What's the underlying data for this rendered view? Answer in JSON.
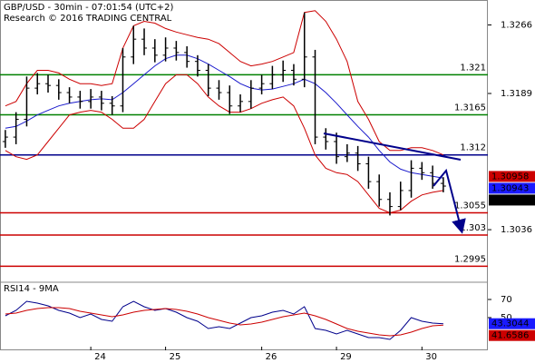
{
  "chart_data": [
    {
      "type": "ohlc",
      "title": "GBP/USD - 30min - 07:01:54 (UTC+2)",
      "subtitle": "Research © 2016 TRADING CENTRAL",
      "categories": [
        null,
        null,
        null,
        null,
        null,
        null,
        null,
        null,
        "24",
        null,
        null,
        null,
        null,
        null,
        null,
        "25",
        null,
        null,
        null,
        null,
        null,
        null,
        null,
        null,
        "26",
        null,
        null,
        null,
        null,
        null,
        null,
        "29",
        null,
        null,
        null,
        null,
        null,
        null,
        null,
        "30",
        null,
        null
      ],
      "open": [
        1.3135,
        1.314,
        1.316,
        1.3195,
        1.32,
        1.3198,
        1.319,
        1.3185,
        1.318,
        1.3185,
        1.3178,
        1.3175,
        1.323,
        1.325,
        1.324,
        1.3232,
        1.324,
        1.3235,
        1.3225,
        1.3215,
        1.3195,
        1.319,
        1.3175,
        1.318,
        1.3195,
        1.32,
        1.321,
        1.3215,
        1.3205,
        1.323,
        1.314,
        1.3135,
        1.3118,
        1.3122,
        1.311,
        1.309,
        1.307,
        1.3062,
        1.308,
        1.3105,
        1.31,
        1.3088
      ],
      "high": [
        1.3148,
        1.3168,
        1.3208,
        1.3212,
        1.321,
        1.3205,
        1.3196,
        1.3192,
        1.3194,
        1.3192,
        1.3186,
        1.324,
        1.3265,
        1.3262,
        1.325,
        1.3252,
        1.3248,
        1.3242,
        1.3232,
        1.3222,
        1.3204,
        1.3198,
        1.3188,
        1.3204,
        1.321,
        1.322,
        1.3226,
        1.3222,
        1.328,
        1.3238,
        1.315,
        1.3145,
        1.3132,
        1.313,
        1.3118,
        1.3098,
        1.3078,
        1.309,
        1.3114,
        1.3112,
        1.3108,
        1.3095
      ],
      "low": [
        1.3128,
        1.3132,
        1.3152,
        1.3188,
        1.319,
        1.3182,
        1.3178,
        1.3172,
        1.3172,
        1.317,
        1.3165,
        1.3168,
        1.3222,
        1.3232,
        1.3224,
        1.3225,
        1.3226,
        1.3218,
        1.3208,
        1.3186,
        1.3182,
        1.3166,
        1.3168,
        1.3172,
        1.3188,
        1.3194,
        1.3202,
        1.3198,
        1.3196,
        1.3132,
        1.3126,
        1.311,
        1.3112,
        1.3102,
        1.3082,
        1.3062,
        1.3052,
        1.3058,
        1.3072,
        1.3092,
        1.3082,
        1.3078
      ],
      "close": [
        1.314,
        1.316,
        1.3195,
        1.32,
        1.3198,
        1.319,
        1.3185,
        1.318,
        1.3185,
        1.3178,
        1.3175,
        1.323,
        1.325,
        1.324,
        1.3232,
        1.324,
        1.3235,
        1.3225,
        1.3215,
        1.3195,
        1.319,
        1.3175,
        1.318,
        1.3195,
        1.32,
        1.321,
        1.3215,
        1.3205,
        1.323,
        1.314,
        1.3135,
        1.3118,
        1.3122,
        1.311,
        1.309,
        1.307,
        1.3062,
        1.308,
        1.3105,
        1.31,
        1.3088,
        1.3085
      ],
      "lines": [
        {
          "color": "#cc0000",
          "values": [
            1.3175,
            1.318,
            1.32,
            1.3215,
            1.3215,
            1.3212,
            1.3205,
            1.32,
            1.32,
            1.3198,
            1.32,
            1.324,
            1.3265,
            1.327,
            1.3268,
            1.3262,
            1.3258,
            1.3255,
            1.3252,
            1.325,
            1.3245,
            1.3235,
            1.3225,
            1.322,
            1.3222,
            1.3225,
            1.323,
            1.3235,
            1.328,
            1.3282,
            1.327,
            1.325,
            1.3225,
            1.318,
            1.316,
            1.3135,
            1.3125,
            1.3125,
            1.3128,
            1.3128,
            1.3125,
            1.312
          ]
        },
        {
          "color": "#cc0000",
          "values": [
            1.3125,
            1.3118,
            1.3115,
            1.312,
            1.3135,
            1.315,
            1.3165,
            1.3168,
            1.317,
            1.3168,
            1.316,
            1.315,
            1.315,
            1.316,
            1.318,
            1.32,
            1.321,
            1.321,
            1.32,
            1.3185,
            1.3175,
            1.3168,
            1.3168,
            1.3172,
            1.3178,
            1.3182,
            1.3185,
            1.3175,
            1.315,
            1.312,
            1.3105,
            1.31,
            1.3098,
            1.309,
            1.3075,
            1.306,
            1.3055,
            1.3058,
            1.3068,
            1.3075,
            1.3078,
            1.308
          ]
        },
        {
          "color": "#1a1acc",
          "values": [
            1.315,
            1.3152,
            1.3158,
            1.3165,
            1.317,
            1.3175,
            1.3178,
            1.318,
            1.3182,
            1.3183,
            1.3182,
            1.319,
            1.32,
            1.321,
            1.322,
            1.3228,
            1.3232,
            1.3232,
            1.3228,
            1.3222,
            1.3215,
            1.3208,
            1.32,
            1.3195,
            1.3193,
            1.3194,
            1.3197,
            1.32,
            1.3205,
            1.32,
            1.319,
            1.3178,
            1.3165,
            1.3152,
            1.314,
            1.3125,
            1.3112,
            1.3104,
            1.31,
            1.3098,
            1.3096,
            1.3094
          ]
        }
      ],
      "ylim": [
        1.2978,
        1.3294
      ],
      "yticks": [
        1.3266,
        1.3189,
        1.3036
      ],
      "levels": [
        {
          "value": 1.321,
          "color": "#008000"
        },
        {
          "value": 1.3165,
          "color": "#008000"
        },
        {
          "value": 1.312,
          "color": "#00008b"
        },
        {
          "value": 1.3055,
          "color": "#cc0000"
        },
        {
          "value": 1.303,
          "color": "#cc0000"
        },
        {
          "value": 1.2995,
          "color": "#cc0000"
        }
      ],
      "price_labels": [
        {
          "value": 1.30958,
          "color": "#cc0000"
        },
        {
          "value": 1.30943,
          "color": "#1a1aff"
        },
        {
          "value": 1.3085,
          "color": "#000000"
        }
      ]
    },
    {
      "type": "line",
      "title": "RSI14 - 9MA",
      "series": [
        {
          "color": "#00008b",
          "values": [
            52,
            58,
            68,
            66,
            63,
            58,
            55,
            50,
            54,
            48,
            46,
            62,
            68,
            62,
            58,
            60,
            56,
            50,
            46,
            38,
            40,
            38,
            44,
            50,
            52,
            56,
            58,
            54,
            62,
            38,
            36,
            32,
            36,
            32,
            28,
            28,
            26,
            36,
            50,
            46,
            44,
            43.3044
          ]
        },
        {
          "color": "#cc0000",
          "values": [
            54,
            55,
            58,
            60,
            61,
            61,
            60,
            57,
            55,
            53,
            51,
            53,
            56,
            58,
            59,
            60,
            59,
            57,
            54,
            50,
            47,
            44,
            42,
            43,
            45,
            48,
            51,
            53,
            55,
            52,
            48,
            43,
            38,
            35,
            33,
            31,
            30,
            31,
            34,
            38,
            41,
            41.6586
          ]
        }
      ],
      "ylim": [
        12,
        88
      ],
      "yticks": [
        70,
        50
      ],
      "price_labels": [
        {
          "value": 43.3044,
          "color": "#1a1aff"
        },
        {
          "value": 41.6586,
          "color": "#cc0000"
        }
      ]
    }
  ]
}
